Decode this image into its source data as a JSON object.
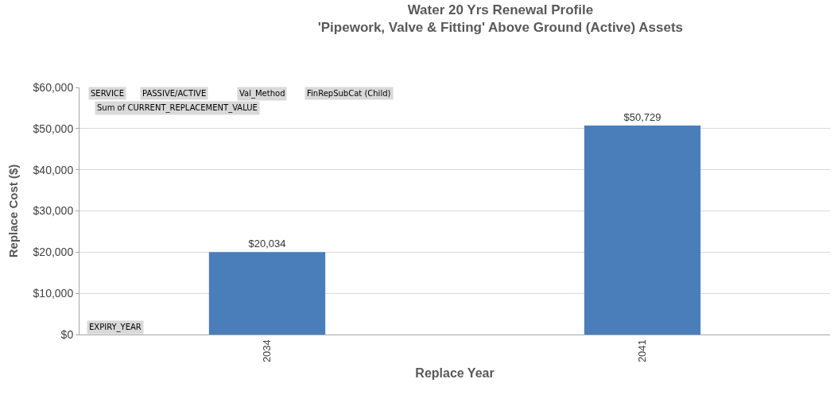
{
  "chart_data": {
    "type": "bar",
    "title": "Water 20 Yrs Renewal Profile\n'Pipework, Valve & Fitting' Above Ground (Active) Assets",
    "xlabel": "Replace Year",
    "ylabel": "Replace Cost ($)",
    "categories": [
      "2034",
      "2041"
    ],
    "values": [
      20034,
      50729
    ],
    "color": "#4a7ebb",
    "value_labels": [
      "$20,034",
      "$50,729"
    ],
    "ylim": [
      0,
      60000
    ],
    "yticks": [
      {
        "value": 0,
        "label": "$0"
      },
      {
        "value": 10000,
        "label": "$10,000"
      },
      {
        "value": 20000,
        "label": "$20,000"
      },
      {
        "value": 30000,
        "label": "$30,000"
      },
      {
        "value": 40000,
        "label": "$40,000"
      },
      {
        "value": 50000,
        "label": "$50,000"
      },
      {
        "value": 60000,
        "label": "$60,000"
      }
    ],
    "grid": "y",
    "legend": false,
    "annotations": [
      "SERVICE",
      "PASSIVE/ACTIVE",
      "Val_Method",
      "FinRepSubCat (Child)",
      "Sum of CURRENT_REPLACEMENT_VALUE",
      "EXPIRY_YEAR"
    ]
  }
}
